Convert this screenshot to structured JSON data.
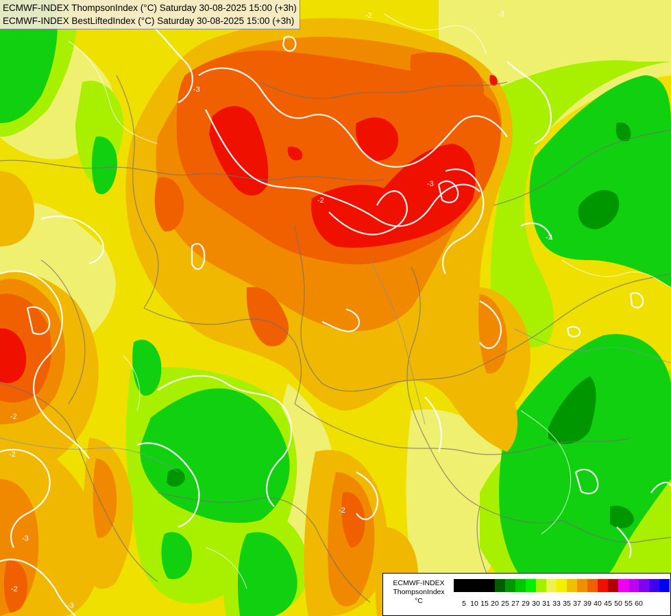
{
  "title_lines": [
    "ECMWF-INDEX ThompsonIndex (°C) Saturday 30-08-2025 15:00 (+3h)",
    "ECMWF-INDEX BestLiftedIndex (°C) Saturday 30-08-2025 15:00 (+3h)"
  ],
  "legend": {
    "model": "ECMWF-INDEX",
    "parameter": "ThompsonIndex",
    "unit": "°C",
    "ticks": [
      "5",
      "10",
      "15",
      "20",
      "25",
      "27",
      "29",
      "30",
      "31",
      "33",
      "35",
      "37",
      "39",
      "40",
      "45",
      "50",
      "55",
      "60"
    ],
    "colors": [
      "#000000",
      "#000000",
      "#000000",
      "#000000",
      "#005e00",
      "#009600",
      "#00c800",
      "#00f000",
      "#a0f000",
      "#f0f050",
      "#f0f000",
      "#f0c000",
      "#f09000",
      "#f06000",
      "#f01000",
      "#b00000",
      "#f000f0",
      "#c000f0",
      "#8000f0",
      "#4000f0",
      "#0000f0"
    ]
  },
  "contour_labels": [
    "-2",
    "-3"
  ],
  "palette": {
    "dark_green": "#009600",
    "green": "#00d000",
    "light_green": "#a0f000",
    "pale_yellow": "#f0f080",
    "yellow": "#f0f000",
    "gold": "#f0c000",
    "orange": "#f09000",
    "dark_orange": "#f06000",
    "red": "#f01000",
    "contour": "#ffffff",
    "border": "#707070"
  }
}
